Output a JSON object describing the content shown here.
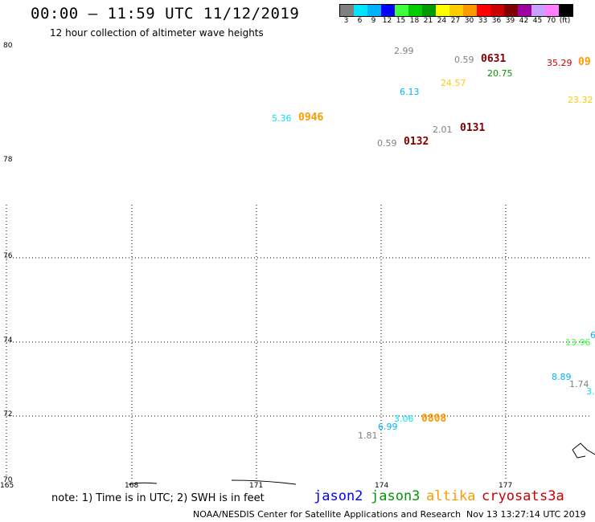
{
  "header": {
    "title": "00:00 – 11:59 UTC 11/12/2019",
    "subtitle": "12 hour collection of altimeter wave heights"
  },
  "legend": {
    "colors": [
      "#808080",
      "#00e5ff",
      "#00b3ff",
      "#0000ff",
      "#40ff40",
      "#00cc00",
      "#009900",
      "#ffff00",
      "#ffcc00",
      "#ff9900",
      "#ff0000",
      "#cc0000",
      "#800000",
      "#a000a0",
      "#c8a0ff",
      "#ff80ff",
      "#000000"
    ],
    "labels": [
      "3",
      "6",
      "9",
      "12",
      "15",
      "18",
      "21",
      "24",
      "27",
      "30",
      "33",
      "36",
      "39",
      "42",
      "45",
      "70",
      "(ft)"
    ]
  },
  "axes": {
    "lat_labels": [
      "80",
      "78",
      "76",
      "74",
      "72",
      "70"
    ],
    "lon_labels": [
      "165",
      "168",
      "171",
      "174",
      "177"
    ]
  },
  "observations": [
    {
      "text": "2.99",
      "color": "#808080"
    },
    {
      "text": "0.59",
      "color": "#808080"
    },
    {
      "text": "20.75",
      "color": "#009900"
    },
    {
      "text": "35.29",
      "color": "#cc0000"
    },
    {
      "text": "24.57",
      "color": "#ffcc00"
    },
    {
      "text": "6.13",
      "color": "#00b3ff"
    },
    {
      "text": "23.32",
      "color": "#ffcc00"
    },
    {
      "text": "5.36",
      "color": "#00e5ff"
    },
    {
      "text": "2.01",
      "color": "#808080"
    },
    {
      "text": "0.59",
      "color": "#808080"
    },
    {
      "text": "6",
      "color": "#00b3ff"
    },
    {
      "text": "13.96",
      "color": "#40ff40"
    },
    {
      "text": "8.89",
      "color": "#00b3ff"
    },
    {
      "text": "1.74",
      "color": "#808080"
    },
    {
      "text": "3.",
      "color": "#00e5ff"
    },
    {
      "text": "3.06",
      "color": "#00e5ff"
    },
    {
      "text": "6.99",
      "color": "#00b3ff"
    },
    {
      "text": "1.81",
      "color": "#808080"
    }
  ],
  "pass_times": [
    {
      "text": "0631",
      "color": "#800000"
    },
    {
      "text": "09",
      "color": "#ff9900"
    },
    {
      "text": "0946",
      "color": "#ff9900"
    },
    {
      "text": "0131",
      "color": "#800000"
    },
    {
      "text": "0132",
      "color": "#800000"
    },
    {
      "text": "0808",
      "color": "#ff9900"
    }
  ],
  "footer": {
    "note": "note: 1) Time is in UTC; 2) SWH is in feet",
    "satellites": [
      {
        "name": "jason2",
        "color": "#0000ff"
      },
      {
        "name": "jason3",
        "color": "#009900"
      },
      {
        "name": "altika",
        "color": "#ff9900"
      },
      {
        "name": "cryosat",
        "color": "#cc0000"
      },
      {
        "name": "s3a",
        "color": "#cc0000"
      }
    ],
    "credit": "NOAA/NESDIS Center for Satellite Applications and Research",
    "timestamp": "Nov 13 13:27:14 UTC 2019"
  }
}
